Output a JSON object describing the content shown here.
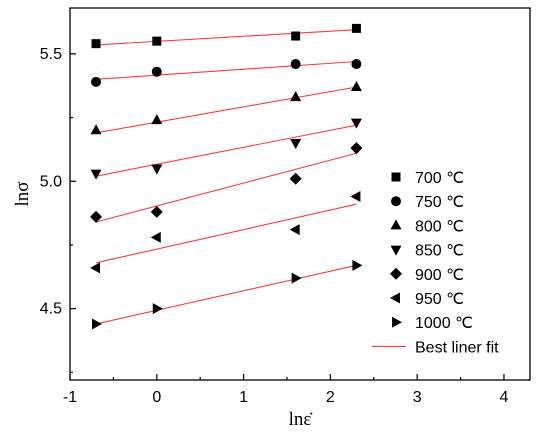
{
  "chart_data": {
    "type": "scatter",
    "xlabel": "lnε̇",
    "ylabel": "lnσ",
    "xlim": [
      -1,
      4.3
    ],
    "ylim": [
      4.22,
      5.68
    ],
    "xticks": [
      -1,
      0,
      1,
      2,
      3,
      4
    ],
    "yticks": [
      4.5,
      5.0,
      5.5
    ],
    "xtick_labels": [
      "-1",
      "0",
      "1",
      "2",
      "3",
      "4"
    ],
    "ytick_labels": [
      "4.5",
      "5.0",
      "5.5"
    ],
    "grid": false,
    "legend_position": "right",
    "fit_line_color": "#ff3b3b",
    "marker_color": "#000000",
    "fit_label": "Best liner fit",
    "series": [
      {
        "name": "700 ℃",
        "marker": "square",
        "x": [
          -0.7,
          0.0,
          1.6,
          2.3
        ],
        "y": [
          5.54,
          5.55,
          5.57,
          5.6
        ],
        "fit": [
          [
            -0.7,
            5.535
          ],
          [
            2.3,
            5.595
          ]
        ]
      },
      {
        "name": "750 ℃",
        "marker": "circle",
        "x": [
          -0.7,
          0.0,
          1.6,
          2.3
        ],
        "y": [
          5.39,
          5.43,
          5.46,
          5.46
        ],
        "fit": [
          [
            -0.7,
            5.4
          ],
          [
            2.3,
            5.47
          ]
        ]
      },
      {
        "name": "800 ℃",
        "marker": "triangle-up",
        "x": [
          -0.7,
          0.0,
          1.6,
          2.3
        ],
        "y": [
          5.2,
          5.24,
          5.33,
          5.37
        ],
        "fit": [
          [
            -0.7,
            5.19
          ],
          [
            2.3,
            5.37
          ]
        ]
      },
      {
        "name": "850 ℃",
        "marker": "triangle-down",
        "x": [
          -0.7,
          0.0,
          1.6,
          2.3
        ],
        "y": [
          5.03,
          5.05,
          5.15,
          5.23
        ],
        "fit": [
          [
            -0.7,
            5.02
          ],
          [
            2.3,
            5.22
          ]
        ]
      },
      {
        "name": "900 ℃",
        "marker": "diamond",
        "x": [
          -0.7,
          0.0,
          1.6,
          2.3
        ],
        "y": [
          4.86,
          4.88,
          5.01,
          5.13
        ],
        "fit": [
          [
            -0.7,
            4.84
          ],
          [
            2.3,
            5.11
          ]
        ]
      },
      {
        "name": "950 ℃",
        "marker": "triangle-left",
        "x": [
          -0.7,
          0.0,
          1.6,
          2.3
        ],
        "y": [
          4.66,
          4.78,
          4.81,
          4.94
        ],
        "fit": [
          [
            -0.7,
            4.68
          ],
          [
            2.3,
            4.91
          ]
        ]
      },
      {
        "name": "1000 ℃",
        "marker": "triangle-right",
        "x": [
          -0.7,
          0.0,
          1.6,
          2.3
        ],
        "y": [
          4.44,
          4.5,
          4.62,
          4.67
        ],
        "fit": [
          [
            -0.7,
            4.44
          ],
          [
            2.3,
            4.67
          ]
        ]
      }
    ]
  }
}
